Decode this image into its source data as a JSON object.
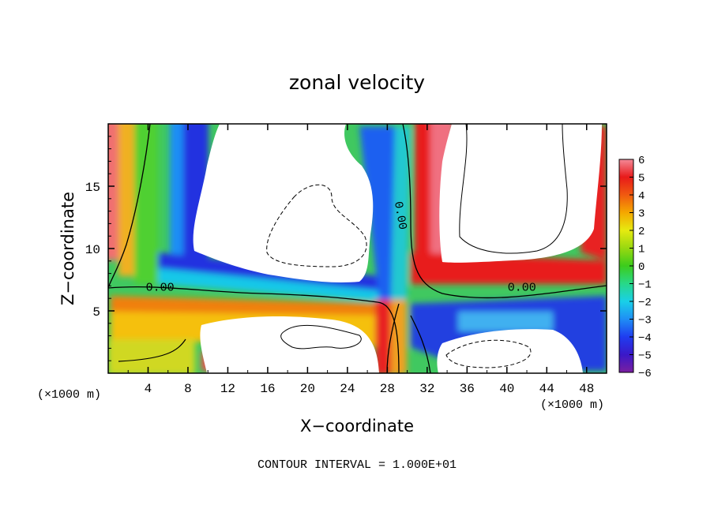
{
  "chart_data": {
    "type": "heatmap",
    "title": "zonal velocity",
    "xlabel": "X−coordinate",
    "ylabel": "Z−coordinate",
    "x_unit_left": "(×1000 m)",
    "x_unit_right": "(×1000 m)",
    "footer": "CONTOUR INTERVAL = 1.000E+01",
    "xlim": [
      0,
      50
    ],
    "ylim": [
      0,
      20
    ],
    "x_ticks": [
      4,
      8,
      12,
      16,
      20,
      24,
      28,
      32,
      36,
      40,
      44,
      48
    ],
    "x_tick_labels": [
      "4",
      "8",
      "12",
      "16",
      "20",
      "24",
      "28",
      "32",
      "36",
      "40",
      "44",
      "48"
    ],
    "y_ticks": [
      5,
      10,
      15
    ],
    "y_tick_labels": [
      "5",
      "10",
      "15"
    ],
    "colorbar": {
      "range": [
        -6,
        6
      ],
      "ticks": [
        6,
        5,
        4,
        3,
        2,
        1,
        0,
        -1,
        -2,
        -3,
        -4,
        -5,
        -6
      ],
      "tick_labels": [
        "6",
        "5",
        "4",
        "3",
        "2",
        "1",
        "0",
        "−1",
        "−2",
        "−3",
        "−4",
        "−5",
        "−6"
      ],
      "colors": [
        "#7a1fa0",
        "#3a18c8",
        "#1f3df0",
        "#1f8ef5",
        "#19d0e8",
        "#28d888",
        "#3ccc1c",
        "#98d810",
        "#e6ea10",
        "#f5a800",
        "#f05a10",
        "#e81a1a",
        "#f48a98"
      ]
    },
    "contour_labels": [
      {
        "text": "0.00",
        "x": 5.2,
        "y": 6.6
      },
      {
        "text": "0.00",
        "x": 41.5,
        "y": 6.6
      },
      {
        "text": "0.00",
        "x": 29.0,
        "y": 12.6,
        "rotate": 80
      }
    ]
  }
}
